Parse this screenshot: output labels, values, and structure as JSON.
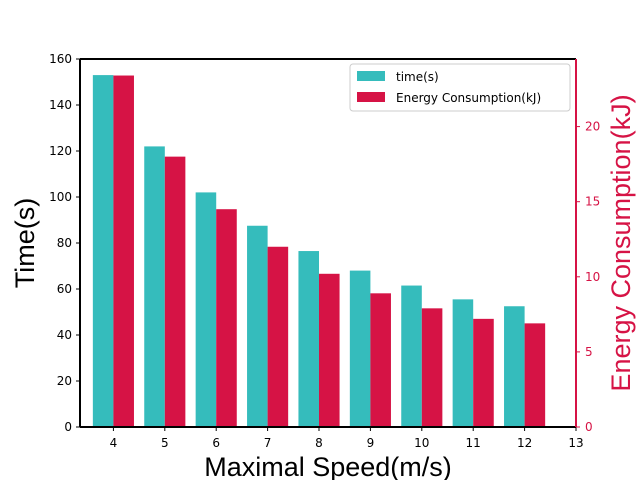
{
  "chart_data": {
    "type": "bar",
    "categories": [
      "4",
      "5",
      "6",
      "7",
      "8",
      "9",
      "10",
      "11",
      "12"
    ],
    "x_ticks": [
      "4",
      "5",
      "6",
      "7",
      "8",
      "9",
      "10",
      "11",
      "12",
      "13"
    ],
    "xlabel": "Maximal Speed(m/s)",
    "ylabel": "Time(s)",
    "ylabel_right": "Energy Consumption(kJ)",
    "ylim": [
      0,
      160
    ],
    "ylim_right": [
      0,
      24.5
    ],
    "y_ticks": [
      "0",
      "20",
      "40",
      "60",
      "80",
      "100",
      "120",
      "140",
      "160"
    ],
    "y_ticks_right": [
      "0",
      "5",
      "10",
      "15",
      "20"
    ],
    "grid": false,
    "legend_position": "top-right",
    "series": [
      {
        "name": "time(s)",
        "axis": "left",
        "color": "#35bcbc",
        "values": [
          153,
          122,
          102,
          87.5,
          76.5,
          68,
          61.5,
          55.5,
          52.5
        ]
      },
      {
        "name": "Energy Consumption(kJ)",
        "axis": "right",
        "color": "#d61345",
        "values": [
          23.4,
          18.0,
          14.5,
          12.0,
          10.2,
          8.9,
          7.9,
          7.2,
          6.9
        ]
      }
    ],
    "right_axis_color": "#d61345"
  }
}
